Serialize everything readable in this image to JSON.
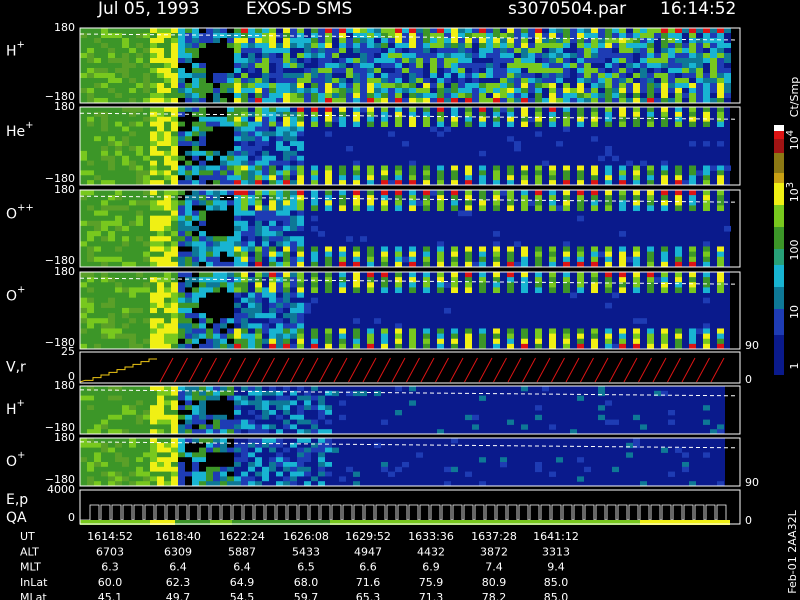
{
  "header": {
    "date": "Jul 05, 1993",
    "instrument": "EXOS-D SMS",
    "file": "s3070504.par",
    "time": "16:14:52"
  },
  "panels": [
    {
      "label": "H",
      "charge": "+",
      "top": "180",
      "bottom": "−180"
    },
    {
      "label": "He",
      "charge": "+",
      "top": "180",
      "bottom": "−180"
    },
    {
      "label": "O",
      "charge": "++",
      "top": "180",
      "bottom": "−180"
    },
    {
      "label": "O",
      "charge": "+",
      "top": "180",
      "bottom": "−180",
      "right_bottom": "90"
    },
    {
      "label": "V,r",
      "top": "25",
      "bottom": "0",
      "right_bottom": "0"
    },
    {
      "label": "H",
      "charge": "+",
      "top": "180",
      "bottom": "−180"
    },
    {
      "label": "O",
      "charge": "+",
      "top": "180",
      "bottom": "−180",
      "right_bottom": "90"
    },
    {
      "label": "E,p",
      "sublabel": "QA",
      "top": "4000",
      "bottom": "0",
      "right_bottom": "0"
    }
  ],
  "colorbar": {
    "title": "Ct/Smp",
    "labels": [
      {
        "base": "10",
        "exp": "4"
      },
      {
        "base": "10",
        "exp": "3"
      },
      {
        "base": "100"
      },
      {
        "base": "10"
      },
      {
        "base": "1"
      }
    ]
  },
  "footer": {
    "rows": [
      {
        "label": "UT",
        "values": [
          "1614:52",
          "1618:40",
          "1622:24",
          "1626:08",
          "1629:52",
          "1633:36",
          "1637:28",
          "1641:12"
        ]
      },
      {
        "label": "ALT",
        "values": [
          "6703",
          "6309",
          "5887",
          "5433",
          "4947",
          "4432",
          "3872",
          "3313"
        ]
      },
      {
        "label": "MLT",
        "values": [
          "6.3",
          "6.4",
          "6.4",
          "6.5",
          "6.6",
          "6.9",
          "7.4",
          "9.4"
        ]
      },
      {
        "label": "InLat",
        "values": [
          "60.0",
          "62.3",
          "64.9",
          "68.0",
          "71.6",
          "75.9",
          "80.9",
          "85.0"
        ]
      },
      {
        "label": "MLat",
        "values": [
          "45.1",
          "49.7",
          "54.5",
          "59.7",
          "65.3",
          "71.3",
          "78.2",
          "85.0"
        ]
      }
    ]
  },
  "side_note": "Feb-01 2AA32L"
}
